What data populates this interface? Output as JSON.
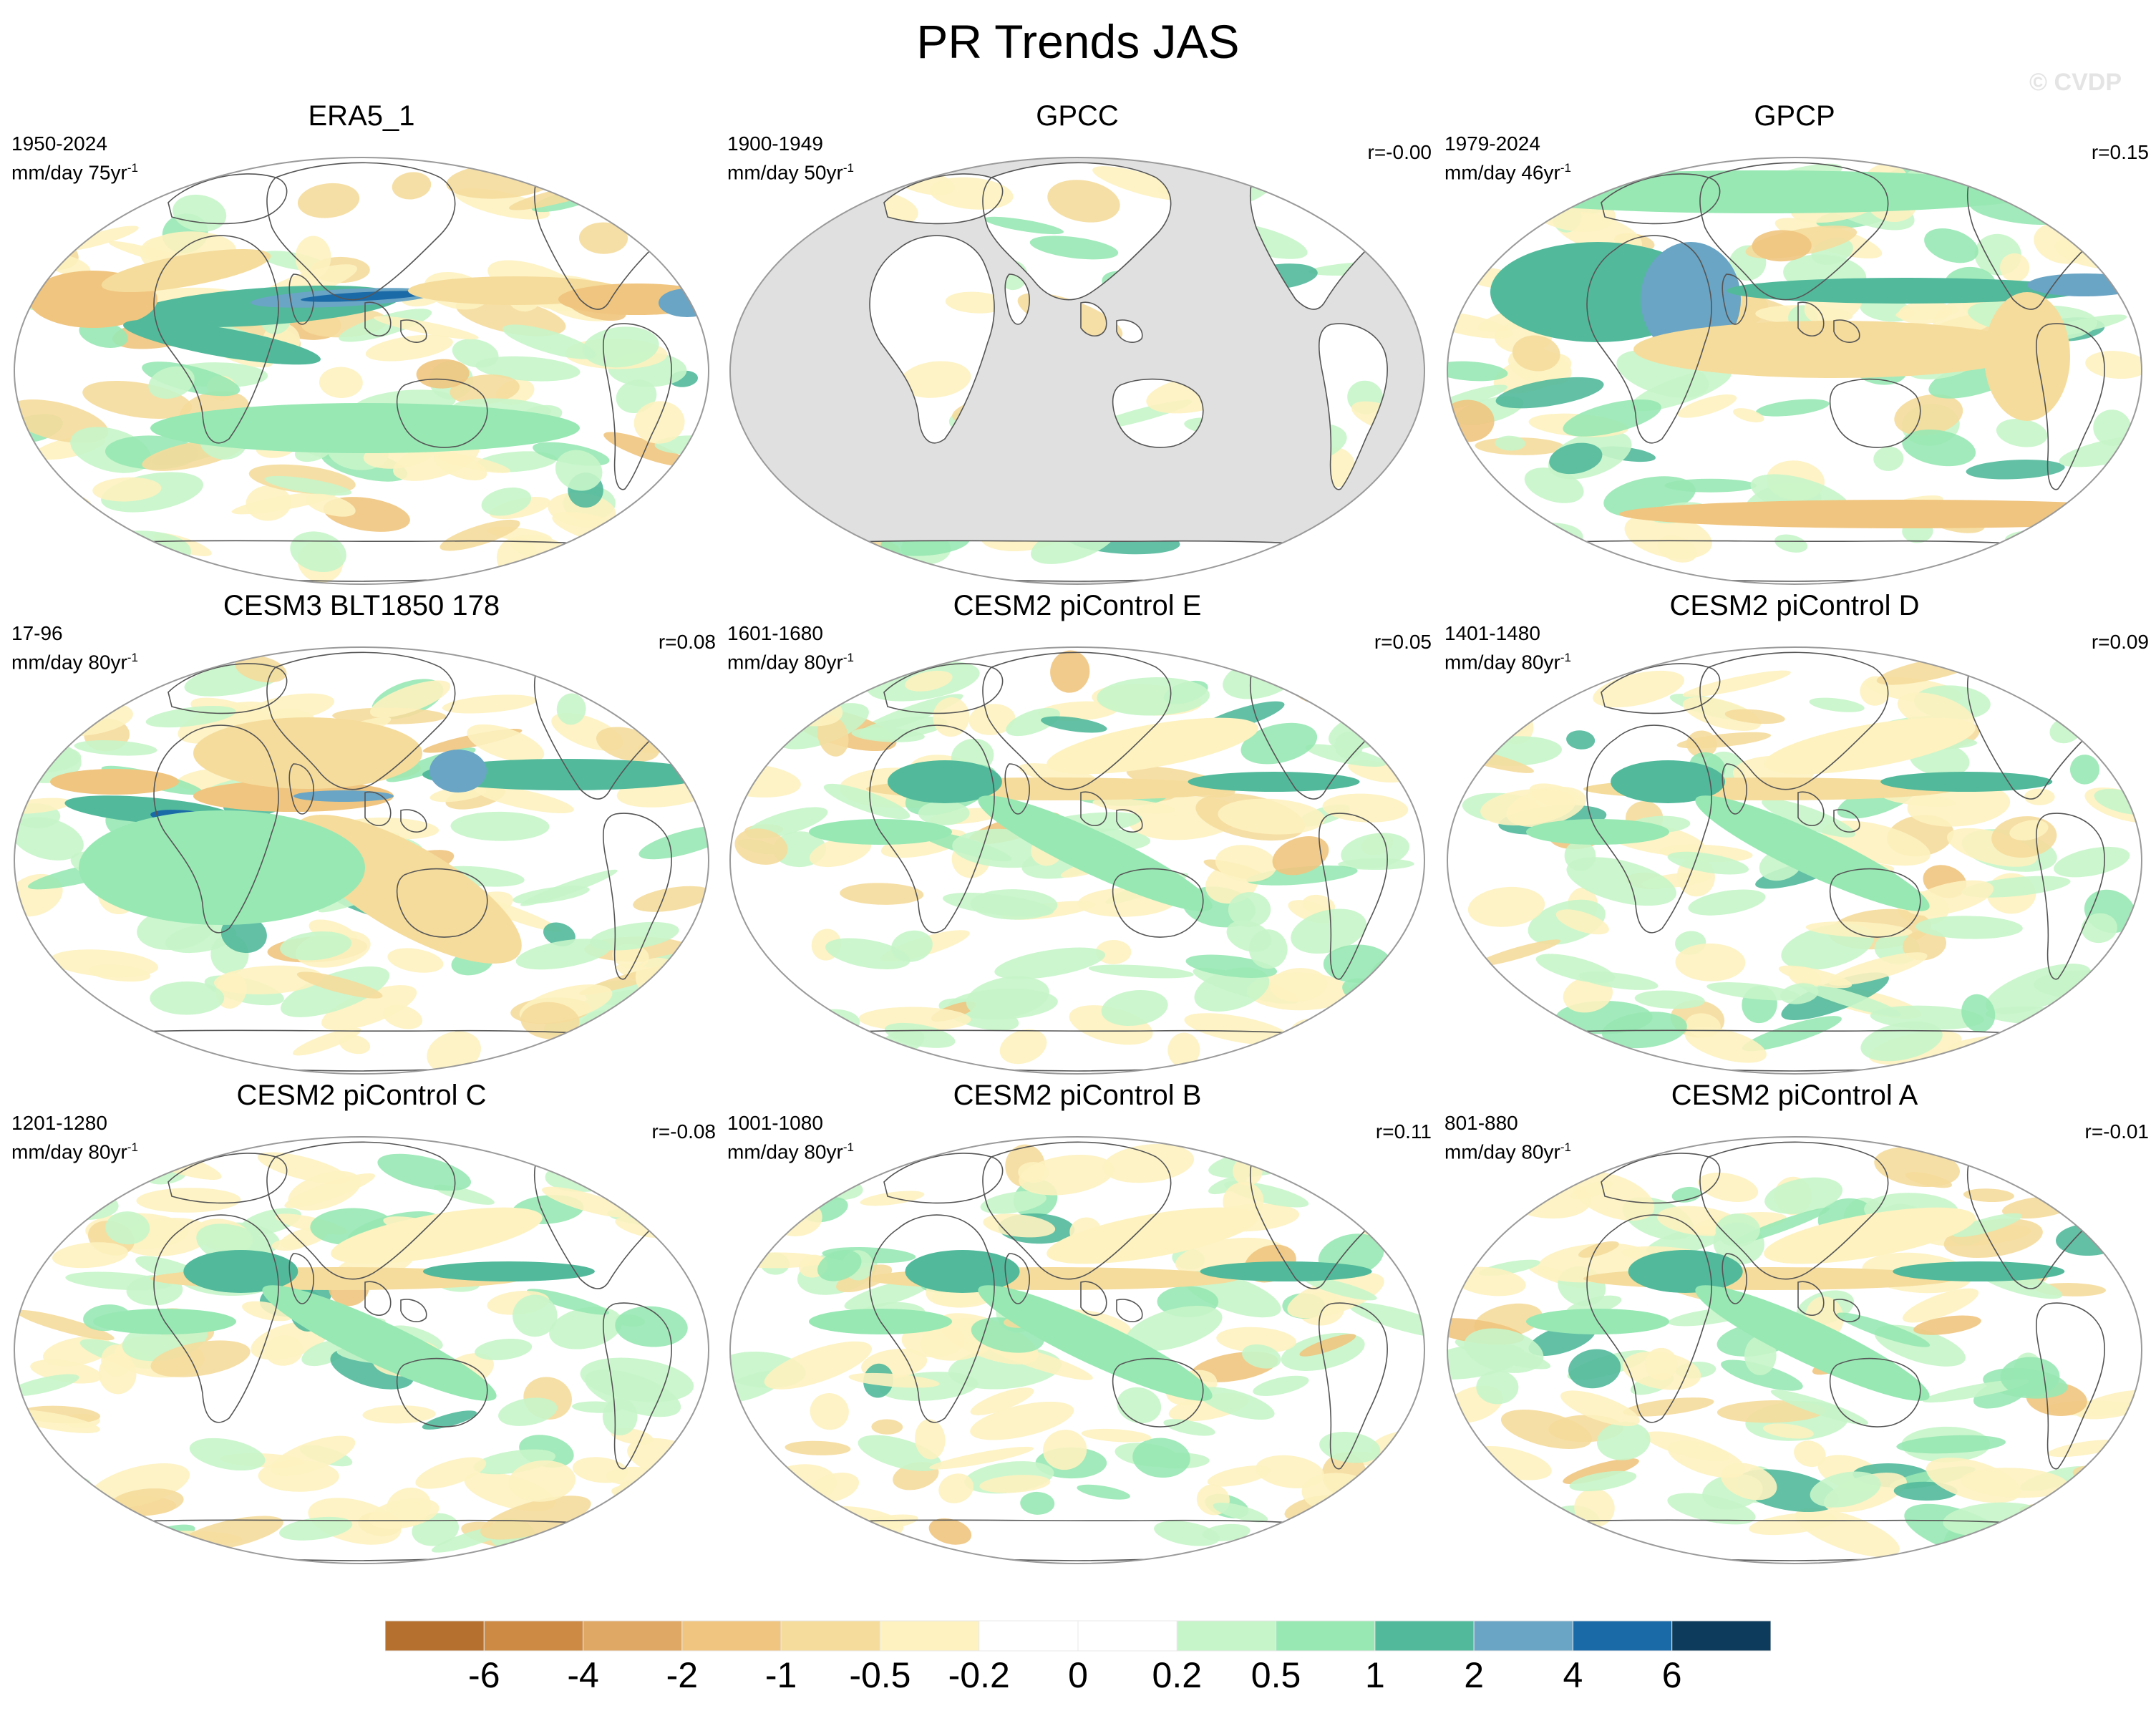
{
  "title": "PR Trends JAS",
  "watermark": "© CVDP",
  "panels": [
    {
      "title": "ERA5_1",
      "period": "1950-2024",
      "units": "mm/day 75yr",
      "units_exp": "-1",
      "corr": "",
      "pattern": "era5"
    },
    {
      "title": "GPCC",
      "period": "1900-1949",
      "units": "mm/day 50yr",
      "units_exp": "-1",
      "corr": "r=-0.00",
      "pattern": "gpcc"
    },
    {
      "title": "GPCP",
      "period": "1979-2024",
      "units": "mm/day 46yr",
      "units_exp": "-1",
      "corr": "r=0.15",
      "pattern": "gpcp"
    },
    {
      "title": "CESM3 BLT1850 178",
      "period": "17-96",
      "units": "mm/day 80yr",
      "units_exp": "-1",
      "corr": "r=0.08",
      "pattern": "cesm3"
    },
    {
      "title": "CESM2 piControl E",
      "period": "1601-1680",
      "units": "mm/day 80yr",
      "units_exp": "-1",
      "corr": "r=0.05",
      "pattern": "pic"
    },
    {
      "title": "CESM2 piControl D",
      "period": "1401-1480",
      "units": "mm/day 80yr",
      "units_exp": "-1",
      "corr": "r=0.09",
      "pattern": "pic"
    },
    {
      "title": "CESM2 piControl C",
      "period": "1201-1280",
      "units": "mm/day 80yr",
      "units_exp": "-1",
      "corr": "r=-0.08",
      "pattern": "pic"
    },
    {
      "title": "CESM2 piControl B",
      "period": "1001-1080",
      "units": "mm/day 80yr",
      "units_exp": "-1",
      "corr": "r=0.11",
      "pattern": "pic"
    },
    {
      "title": "CESM2 piControl A",
      "period": "801-880",
      "units": "mm/day 80yr",
      "units_exp": "-1",
      "corr": "r=-0.01",
      "pattern": "pic"
    }
  ],
  "colorbar": {
    "labels": [
      "-6",
      "-4",
      "-2",
      "-1",
      "-0.5",
      "-0.2",
      "0",
      "0.2",
      "0.5",
      "1",
      "2",
      "4",
      "6"
    ],
    "colors": [
      "#b5702f",
      "#cd8a44",
      "#dfa864",
      "#f0c57f",
      "#f5dc9c",
      "#fdf2c0",
      "#ffffff",
      "#ffffff",
      "#c6f5c9",
      "#98e8b4",
      "#52b99b",
      "#6aa5c5",
      "#1b6aa8",
      "#0d3b5c"
    ]
  },
  "map_colors": {
    "ocean": "#ffffff",
    "missing": "#e0e0e0",
    "coast": "#555555",
    "border": "#9a9a9a"
  }
}
